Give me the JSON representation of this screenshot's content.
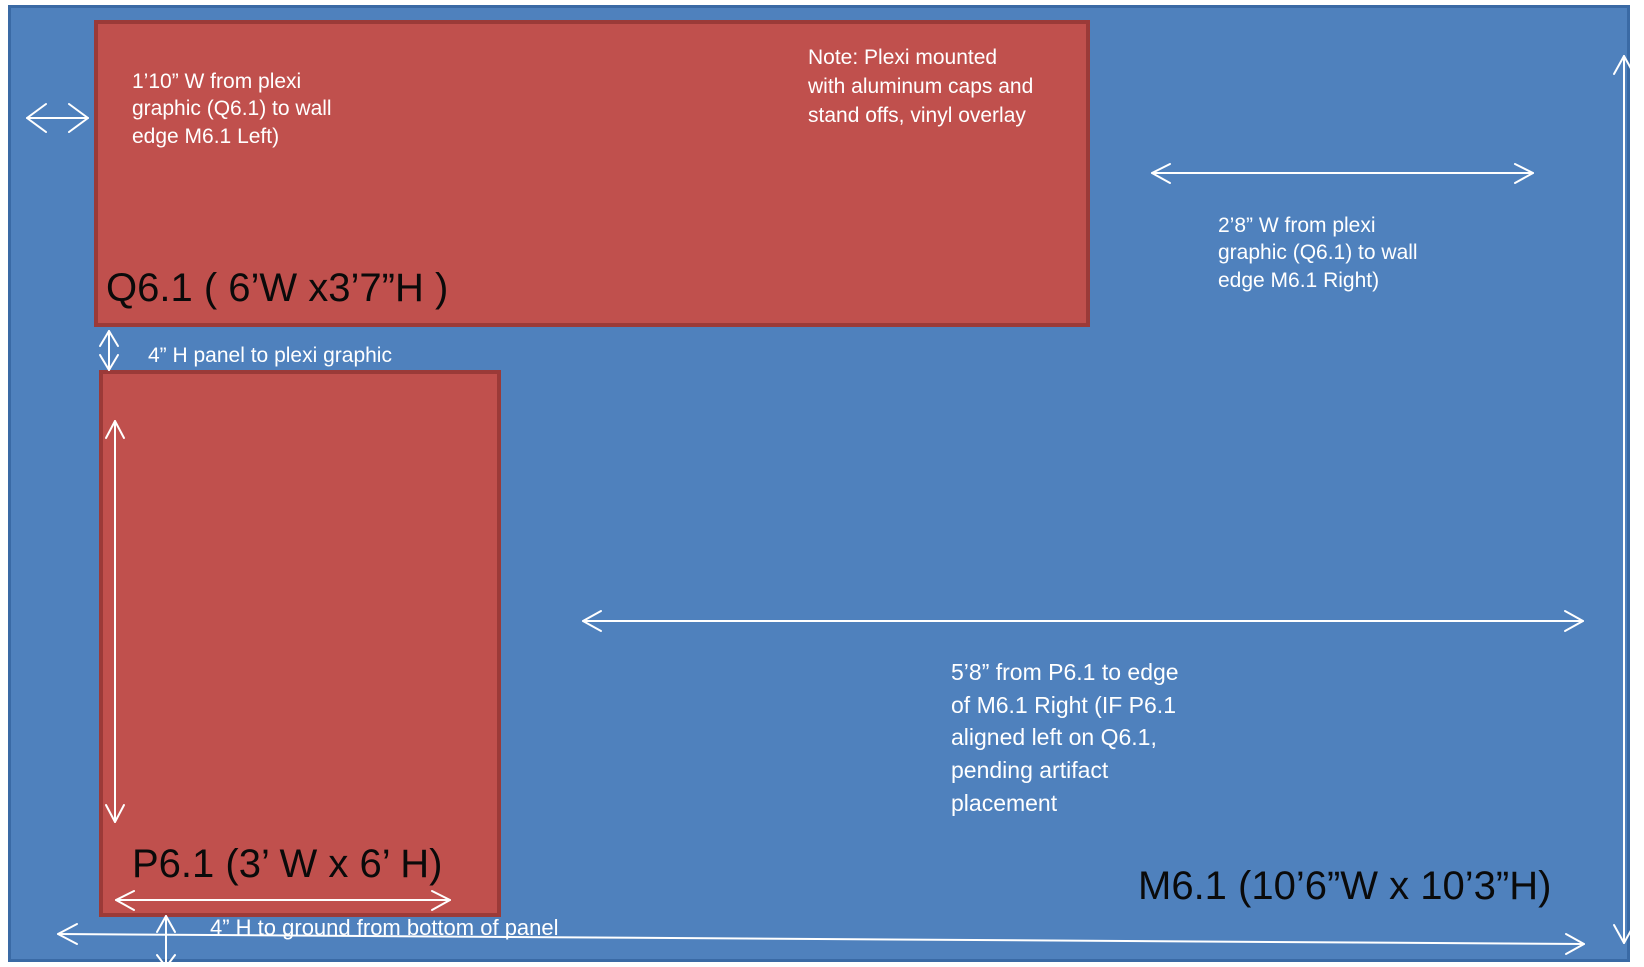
{
  "wall": {
    "label": "M6.1 (10’6”W x 10’3”H)",
    "color": "#4f81bd"
  },
  "plexi": {
    "label": "Q6.1 ( 6’W x3’7”H )",
    "note": "Note: Plexi mounted\nwith aluminum caps and\nstand offs, vinyl overlay",
    "color": "#c0504d"
  },
  "panel": {
    "label": "P6.1 (3’ W x 6’ H)",
    "color": "#c0504d"
  },
  "dimensions": {
    "left_gap": "1’10” W from plexi\ngraphic (Q6.1) to wall\nedge M6.1 Left)",
    "right_gap": "2’8” W from plexi\ngraphic (Q6.1) to wall\nedge M6.1 Right)",
    "panel_to_plexi": "4” H panel to  plexi graphic",
    "panel_to_edge": "5’8” from P6.1 to edge\nof M6.1 Right (IF P6.1\naligned left on Q6.1,\npending artifact\nplacement",
    "ground_gap": "4” H to ground from bottom of panel"
  },
  "arrow_color": "#ffffff"
}
